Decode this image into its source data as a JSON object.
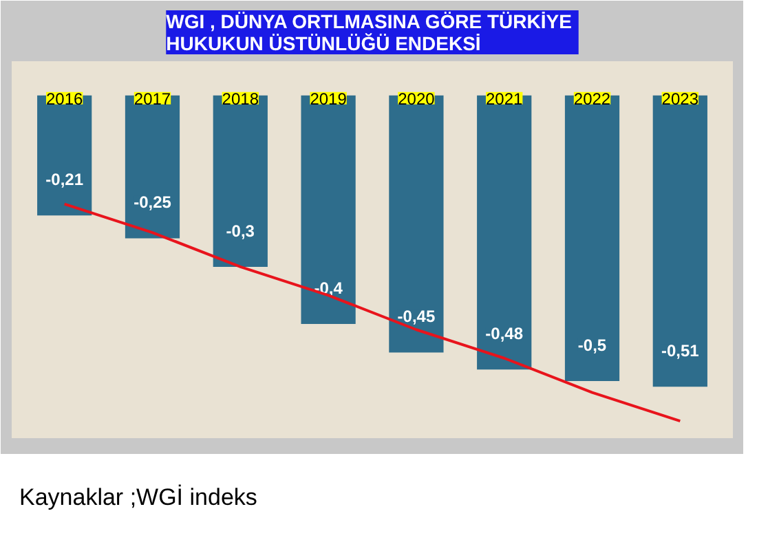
{
  "chart_data": {
    "type": "bar",
    "title": "WGI ,  DÜNYA ORTLMASINA GÖRE TÜRKİYE\nHUKUKUN ÜSTÜNLÜĞÜ ENDEKSİ",
    "categories": [
      "2016",
      "2017",
      "2018",
      "2019",
      "2020",
      "2021",
      "2022",
      "2023"
    ],
    "series": [
      {
        "color": "#2e6d8c",
        "values": [
          -0.21,
          -0.25,
          -0.3,
          -0.4,
          -0.45,
          -0.48,
          -0.5,
          -0.51
        ],
        "value_labels": [
          "-0,21",
          "-0,25",
          "-0,3",
          "-0,4",
          "-0,45",
          "-0,48",
          "-0,5",
          "-0,51"
        ]
      },
      {
        "type": "line",
        "color": "#e8141c",
        "values": [
          -0.19,
          -0.24,
          -0.3,
          -0.35,
          -0.41,
          -0.46,
          -0.52,
          -0.57
        ]
      }
    ],
    "ylim": [
      -0.6,
      0.06
    ],
    "grid": false,
    "annotations": [
      "Kaynaklar ;WGİ indeks"
    ]
  }
}
